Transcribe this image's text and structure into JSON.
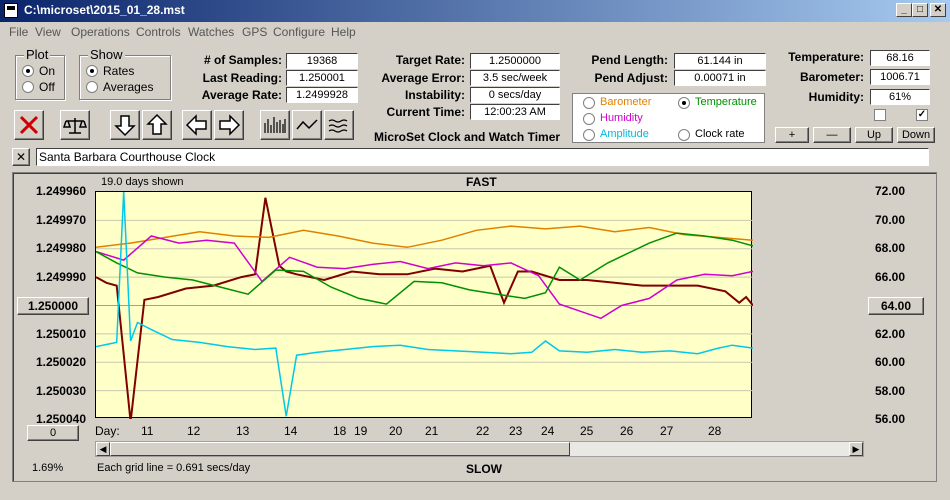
{
  "window": {
    "title": "C:\\microset\\2015_01_28.mst"
  },
  "menu": [
    "File",
    "View",
    "Operations",
    "Controls",
    "Watches",
    "GPS",
    "Configure",
    "Help"
  ],
  "plot_group": {
    "label": "Plot",
    "options": [
      "On",
      "Off"
    ],
    "selected": "On"
  },
  "show_group": {
    "label": "Show",
    "options": [
      "Rates",
      "Averages"
    ],
    "selected": "Rates"
  },
  "stats": {
    "samples_label": "# of Samples:",
    "samples": "19368",
    "last_label": "Last Reading:",
    "last": "1.250001",
    "avg_rate_label": "Average Rate:",
    "avg_rate": "1.2499928"
  },
  "rates": {
    "target_label": "Target Rate:",
    "target": "1.2500000",
    "avg_error_label": "Average Error:",
    "avg_error": "3.5 sec/week",
    "instability_label": "Instability:",
    "instability": "0 secs/day",
    "current_time_label": "Current Time:",
    "current_time": "12:00:23 AM",
    "app_caption": "MicroSet Clock and Watch Timer"
  },
  "pendulum": {
    "length_label": "Pend Length:",
    "length": "61.144 in",
    "adjust_label": "Pend Adjust:",
    "adjust": "0.00071 in"
  },
  "environment": {
    "temperature_label": "Temperature:",
    "temperature": "68.16",
    "barometer_label": "Barometer:",
    "barometer": "1006.71",
    "humidity_label": "Humidity:",
    "humidity": "61%"
  },
  "display_options": [
    {
      "label": "Barometer",
      "color": "#e08000",
      "selected": false
    },
    {
      "label": "Temperature",
      "color": "#009000",
      "selected": true
    },
    {
      "label": "Humidity",
      "color": "#d000d0",
      "selected": false
    },
    {
      "label": "Clock rate",
      "color": "#000000",
      "selected": false
    },
    {
      "label": "Amplitude",
      "color": "#00c0e0",
      "selected": false
    }
  ],
  "scale_buttons": {
    "plus": "+",
    "minus": "—",
    "up": "Up",
    "down": "Down"
  },
  "toolbar_icons": [
    "clear-icon",
    "balance-icon",
    "arrow-down-icon",
    "arrow-up-icon",
    "arrow-left-icon",
    "arrow-right-icon",
    "bar-chart-icon",
    "line-chart-icon",
    "wave-chart-icon"
  ],
  "clock_name": "Santa Barbara Courthouse Clock",
  "close_symbol": "✕",
  "chart": {
    "top_label": "FAST",
    "bottom_label": "SLOW",
    "days_shown": "19.0 days shown",
    "grid_note": "Each grid line = 0.691 secs/day",
    "zoom_percent": "1.69%",
    "left_axis_button": "1.250000",
    "right_axis_button": "64.00",
    "offset_button": "0",
    "day_label": "Day:"
  },
  "chart_data": {
    "type": "line",
    "left_ticks": [
      "1.249960",
      "1.249970",
      "1.249980",
      "1.249990",
      "1.250000",
      "1.250010",
      "1.250020",
      "1.250030",
      "1.250040"
    ],
    "right_ticks": [
      "72.00",
      "70.00",
      "68.00",
      "66.00",
      "64.00",
      "62.00",
      "60.00",
      "58.00",
      "56.00"
    ],
    "left_range": [
      1.25004,
      1.24996
    ],
    "right_range": [
      56,
      72
    ],
    "x_ticks": [
      "11",
      "12",
      "13",
      "14",
      "18",
      "19",
      "20",
      "21",
      "22",
      "23",
      "24",
      "25",
      "26",
      "27",
      "28"
    ],
    "series": [
      {
        "color": "#800000",
        "axis": "left",
        "x": [
          0,
          0.3,
          0.6,
          1.0,
          1.4,
          1.8,
          2.6,
          3.4,
          4.2,
          4.6,
          4.9,
          5.3,
          5.5,
          5.8,
          6.6,
          7.4,
          8.2,
          9.0,
          9.8,
          10.6,
          11.4,
          11.8,
          12.2,
          12.6,
          13.4,
          14.2,
          15.0,
          15.8,
          16.6,
          17.4,
          18.2,
          18.6,
          18.8,
          19.0
        ],
        "y": [
          1.24999,
          1.249992,
          1.249993,
          1.250041,
          1.249998,
          1.249997,
          1.249994,
          1.249993,
          1.24999,
          1.249989,
          1.249962,
          1.249986,
          1.249988,
          1.249989,
          1.249991,
          1.249988,
          1.249989,
          1.249989,
          1.249987,
          1.249988,
          1.249986,
          1.249999,
          1.249988,
          1.249988,
          1.249991,
          1.249991,
          1.249992,
          1.249993,
          1.249993,
          1.249993,
          1.249995,
          1.249999,
          1.249997,
          1.25
        ]
      },
      {
        "color": "#e08000",
        "axis": "right",
        "x": [
          0,
          1.0,
          2.0,
          3.0,
          4.0,
          5.0,
          6.0,
          7.0,
          8.0,
          9.0,
          10.0,
          11.0,
          12.0,
          13.0,
          14.0,
          15.0,
          16.0,
          17.0,
          18.0,
          19.0
        ],
        "y": [
          68.1,
          68.4,
          68.8,
          69.2,
          68.9,
          68.8,
          69.3,
          68.9,
          68.4,
          68.1,
          68.6,
          69.3,
          69.6,
          69.4,
          69.6,
          69.2,
          69.5,
          69.0,
          68.8,
          68.6
        ]
      },
      {
        "color": "#d000d0",
        "axis": "right",
        "x": [
          0,
          0.8,
          1.6,
          2.4,
          3.2,
          4.0,
          4.8,
          5.6,
          6.4,
          7.2,
          8.0,
          8.8,
          9.6,
          10.4,
          11.2,
          12.0,
          12.8,
          13.4,
          14.0,
          14.6,
          15.2,
          16.0,
          16.8,
          17.6,
          18.4,
          19.0
        ],
        "y": [
          67.8,
          67.2,
          68.9,
          68.4,
          68.6,
          68.4,
          65.7,
          67.4,
          66.7,
          66.6,
          66.9,
          67.1,
          66.6,
          67.0,
          66.8,
          67.0,
          66.1,
          64.1,
          63.6,
          63.1,
          64.0,
          64.5,
          65.8,
          66.2,
          66.1,
          66.4
        ]
      },
      {
        "color": "#009000",
        "axis": "right",
        "x": [
          0,
          0.6,
          1.2,
          2.0,
          2.8,
          3.6,
          4.4,
          5.2,
          6.0,
          6.8,
          7.6,
          8.4,
          9.2,
          10.0,
          10.8,
          11.6,
          12.4,
          13.0,
          13.4,
          14.0,
          14.8,
          15.4,
          16.0,
          16.8,
          17.6,
          18.4,
          19.0
        ],
        "y": [
          67.8,
          67.0,
          66.3,
          66.0,
          65.8,
          65.3,
          64.8,
          66.5,
          66.4,
          65.3,
          64.5,
          64.1,
          65.7,
          65.6,
          65.1,
          64.8,
          64.5,
          64.9,
          66.7,
          65.8,
          67.0,
          67.7,
          68.4,
          69.1,
          68.9,
          68.6,
          68.2
        ]
      },
      {
        "color": "#00c8e8",
        "axis": "right",
        "x": [
          0,
          0.6,
          0.8,
          1.0,
          1.2,
          1.6,
          2.2,
          3.0,
          3.8,
          4.6,
          5.2,
          5.5,
          5.8,
          6.4,
          7.2,
          8.0,
          8.8,
          9.6,
          10.4,
          11.2,
          12.0,
          12.6,
          13.0,
          13.4,
          14.2,
          15.0,
          15.8,
          16.6,
          17.4,
          18.0,
          18.4,
          19.0
        ],
        "y": [
          61.1,
          61.4,
          72.0,
          61.5,
          62.8,
          62.3,
          61.6,
          61.4,
          61.1,
          60.9,
          61.0,
          56.2,
          60.5,
          60.7,
          60.9,
          61.1,
          61.2,
          60.9,
          60.8,
          60.7,
          60.6,
          60.7,
          61.5,
          60.8,
          60.7,
          60.9,
          60.7,
          60.8,
          60.6,
          61.0,
          61.2,
          61.0
        ]
      }
    ]
  }
}
